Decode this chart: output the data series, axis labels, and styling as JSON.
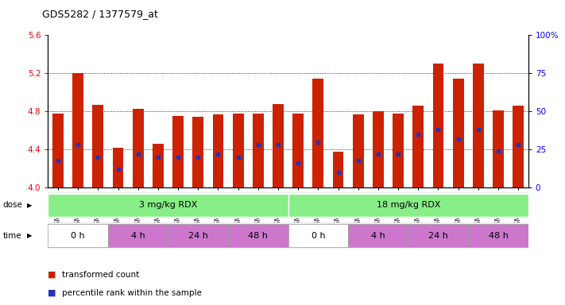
{
  "title": "GDS5282 / 1377579_at",
  "samples": [
    "GSM306951",
    "GSM306953",
    "GSM306955",
    "GSM306957",
    "GSM306959",
    "GSM306961",
    "GSM306963",
    "GSM306965",
    "GSM306967",
    "GSM306969",
    "GSM306971",
    "GSM306973",
    "GSM306975",
    "GSM306977",
    "GSM306979",
    "GSM306981",
    "GSM306983",
    "GSM306985",
    "GSM306987",
    "GSM306989",
    "GSM306991",
    "GSM306993",
    "GSM306995",
    "GSM306997"
  ],
  "bar_values": [
    4.78,
    5.2,
    4.87,
    4.42,
    4.83,
    4.46,
    4.75,
    4.74,
    4.77,
    4.78,
    4.78,
    4.88,
    4.78,
    5.14,
    4.38,
    4.77,
    4.8,
    4.78,
    4.86,
    5.3,
    5.14,
    5.3,
    4.81,
    4.86
  ],
  "percentile_values": [
    18,
    28,
    20,
    12,
    22,
    20,
    20,
    20,
    22,
    20,
    28,
    28,
    16,
    30,
    10,
    18,
    22,
    22,
    35,
    38,
    32,
    38,
    24,
    28
  ],
  "y_min": 4.0,
  "y_max": 5.6,
  "y_ticks": [
    4.0,
    4.4,
    4.8,
    5.2,
    5.6
  ],
  "y_right_ticks": [
    0,
    25,
    50,
    75,
    100
  ],
  "bar_color": "#cc2200",
  "dot_color": "#2233bb",
  "bar_bottom": 4.0,
  "dose_labels": [
    "3 mg/kg RDX",
    "18 mg/kg RDX"
  ],
  "dose_color": "#88ee88",
  "time_colors": [
    "#ffffff",
    "#cc77cc",
    "#cc77cc",
    "#cc77cc",
    "#ffffff",
    "#cc77cc",
    "#cc77cc",
    "#cc77cc"
  ],
  "time_labels": [
    "0 h",
    "4 h",
    "24 h",
    "48 h",
    "0 h",
    "4 h",
    "24 h",
    "48 h"
  ],
  "legend_items": [
    "transformed count",
    "percentile rank within the sample"
  ],
  "bg_color": "#eeeeee"
}
